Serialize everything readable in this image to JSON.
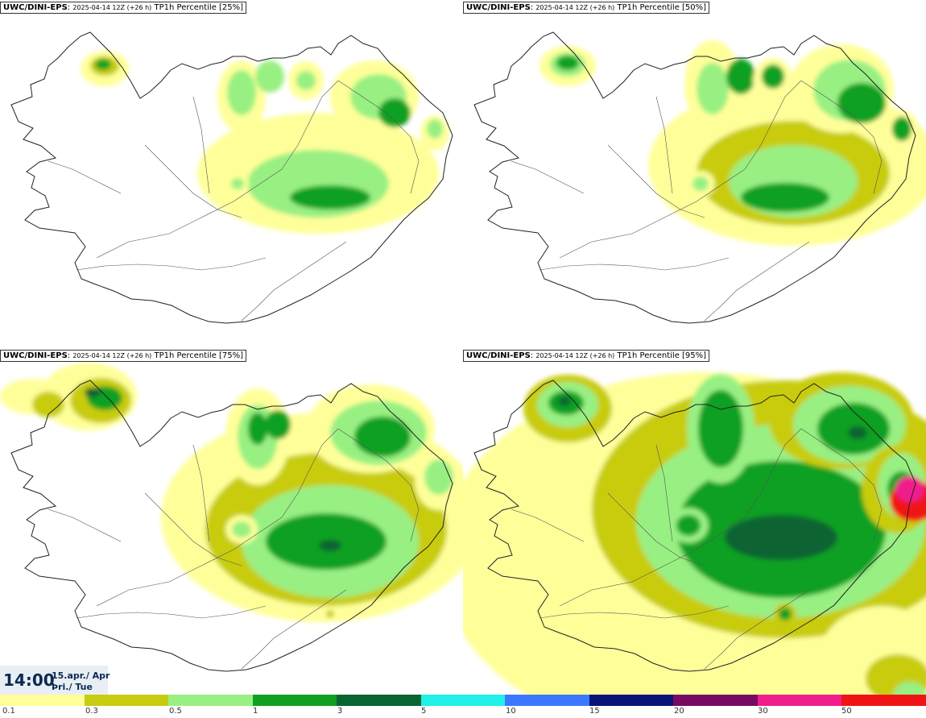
{
  "panels": [
    {
      "source": "UWC/DINI-EPS",
      "run": "2025-04-14 12Z (+26 h)",
      "product": "TP1h Percentile [25%]",
      "percentile": 25
    },
    {
      "source": "UWC/DINI-EPS",
      "run": "2025-04-14 12Z (+26 h)",
      "product": "TP1h Percentile [50%]",
      "percentile": 50
    },
    {
      "source": "UWC/DINI-EPS",
      "run": "2025-04-14 12Z (+26 h)",
      "product": "TP1h Percentile [75%]",
      "percentile": 75
    },
    {
      "source": "UWC/DINI-EPS",
      "run": "2025-04-14 12Z (+26 h)",
      "product": "TP1h Percentile [95%]",
      "percentile": 95
    }
  ],
  "valid_time": {
    "time": "14:00",
    "date": "15.apr./ Apr",
    "weekday": "Þri./ Tue"
  },
  "legend": {
    "labels": [
      "0.1",
      "0.3",
      "0.5",
      "1",
      "3",
      "5",
      "10",
      "15",
      "20",
      "30",
      "50"
    ],
    "colors": [
      "#ffff9a",
      "#c8cc10",
      "#98f082",
      "#10a020",
      "#0a6432",
      "#20f0e6",
      "#3c78ff",
      "#0a1478",
      "#780a64",
      "#f01e8c",
      "#f01414"
    ]
  }
}
